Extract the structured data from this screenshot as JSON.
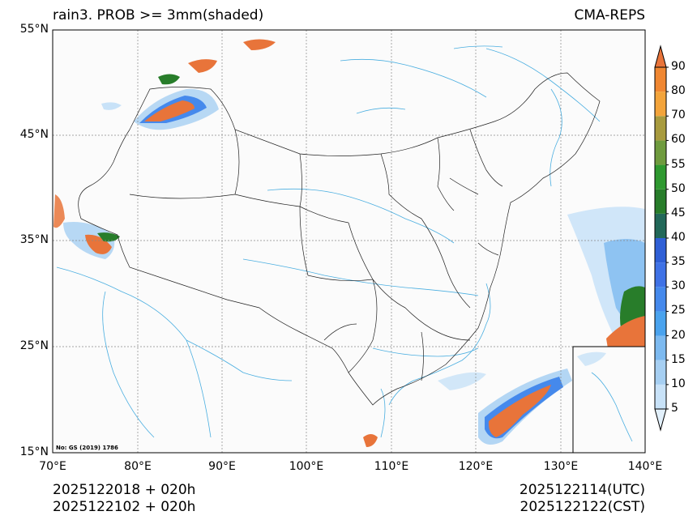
{
  "map": {
    "title": "rain3. PROB >= 3mm(shaded)",
    "source": "CMA-REPS",
    "approval_no": "No: GS (2019) 1786",
    "variable": "probability of 3-hour precipitation >= 3mm",
    "extent": {
      "lon": [
        70,
        140
      ],
      "lat": [
        15,
        55
      ]
    },
    "lat_ticks": [
      "55°N",
      "45°N",
      "35°N",
      "25°N",
      "15°N"
    ],
    "lon_ticks": [
      "70°E",
      "80°E",
      "90°E",
      "100°E",
      "110°E",
      "120°E",
      "130°E",
      "140°E"
    ],
    "colorbar": {
      "levels": [
        "5",
        "10",
        "15",
        "20",
        "25",
        "30",
        "35",
        "40",
        "45",
        "50",
        "55",
        "60",
        "70",
        "80",
        "90"
      ],
      "colors": [
        "#e2f0fb",
        "#c8e2f8",
        "#a6cff2",
        "#7dbaf0",
        "#4aa3ee",
        "#4589ec",
        "#3f72e6",
        "#2f5fd6",
        "#226859",
        "#287d2a",
        "#2f9930",
        "#6f9b3e",
        "#a89b3e",
        "#f3a43b",
        "#f08732",
        "#e8743a"
      ]
    },
    "footer": {
      "init_utc": "2025122018  +  020h",
      "init_cst": "2025122102  +  020h",
      "valid_utc": "2025122114(UTC)",
      "valid_cst": "2025122122(CST)"
    }
  }
}
